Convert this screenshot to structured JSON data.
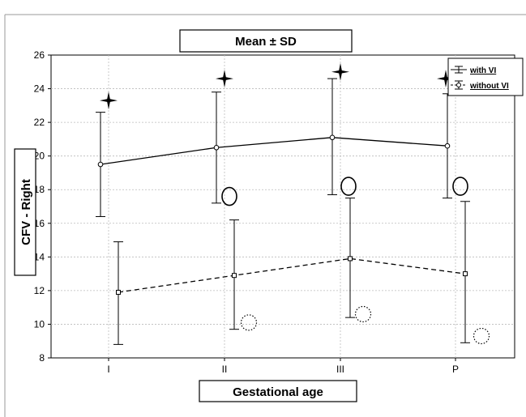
{
  "chart_data": {
    "type": "line",
    "title": "Mean ± SD",
    "xlabel": "Gestational age",
    "ylabel": "CFV - Right",
    "categories": [
      "I",
      "II",
      "III",
      "P"
    ],
    "y_ticks": [
      "8",
      "10",
      "12",
      "14",
      "16",
      "18",
      "20",
      "22",
      "24",
      "26"
    ],
    "ylim": [
      8,
      26
    ],
    "grid": true,
    "legend_position": "top-right",
    "series": [
      {
        "name": "with VI",
        "line_style": "solid",
        "marker": "circle",
        "mean": [
          19.5,
          20.5,
          21.1,
          20.6
        ],
        "upper": [
          22.6,
          23.8,
          24.6,
          23.7
        ],
        "lower": [
          16.4,
          17.2,
          17.7,
          17.5
        ]
      },
      {
        "name": "without VI",
        "line_style": "dashed",
        "marker": "square",
        "mean": [
          11.9,
          12.9,
          13.9,
          13.0
        ],
        "upper": [
          14.9,
          16.2,
          17.5,
          17.3
        ],
        "lower": [
          8.8,
          9.7,
          10.4,
          8.9
        ]
      }
    ],
    "annotations": [
      {
        "symbol": "star",
        "category": "I",
        "y": 23.3
      },
      {
        "symbol": "star",
        "category": "II",
        "y": 24.6
      },
      {
        "symbol": "star",
        "category": "III",
        "y": 25.0
      },
      {
        "symbol": "star",
        "category": "P",
        "y": 24.6
      },
      {
        "symbol": "open-circle",
        "category": "II",
        "y": 17.6
      },
      {
        "symbol": "open-circle",
        "category": "III",
        "y": 18.2
      },
      {
        "symbol": "open-circle",
        "category": "P",
        "y": 18.2
      },
      {
        "symbol": "dotted-circle",
        "category": "II",
        "y": 10.1
      },
      {
        "symbol": "dotted-circle",
        "category": "III",
        "y": 10.6
      },
      {
        "symbol": "dotted-circle",
        "category": "P",
        "y": 9.3
      }
    ]
  }
}
